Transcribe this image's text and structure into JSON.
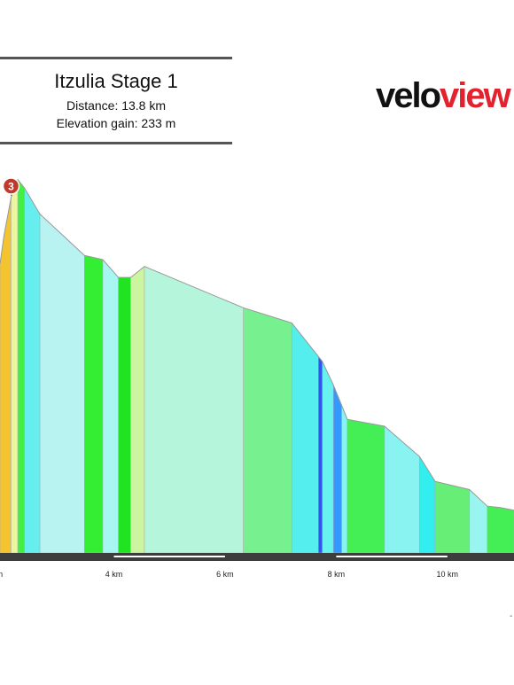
{
  "header": {
    "title": "Itzulia Stage 1",
    "distance": "Distance: 13.8 km",
    "elevation_gain": "Elevation gain: 233 m"
  },
  "logo": {
    "part1": "velo",
    "part2": "view",
    "color1": "#111111",
    "color2": "#e2222e"
  },
  "trailing_mark": "-",
  "chart_data": {
    "type": "area",
    "title": "Itzulia Stage 1",
    "xlabel": "",
    "ylabel": "",
    "x_unit": "km",
    "xlim": [
      1.95,
      11.2
    ],
    "ylim": [
      0,
      276
    ],
    "xticks": [
      {
        "value": 2,
        "label": "m"
      },
      {
        "value": 4,
        "label": "4 km"
      },
      {
        "value": 6,
        "label": "6 km"
      },
      {
        "value": 8,
        "label": "8 km"
      },
      {
        "value": 10,
        "label": "10 km"
      }
    ],
    "axis_bar_color": "#3d3d3d",
    "axis_stripe_segments": [
      [
        4,
        6
      ],
      [
        8,
        10
      ]
    ],
    "profile": [
      {
        "x": 1.95,
        "y": 210
      },
      {
        "x": 2.02,
        "y": 230
      },
      {
        "x": 2.15,
        "y": 258
      },
      {
        "x": 2.27,
        "y": 271
      },
      {
        "x": 2.39,
        "y": 265
      },
      {
        "x": 2.67,
        "y": 246
      },
      {
        "x": 3.47,
        "y": 216
      },
      {
        "x": 3.8,
        "y": 213
      },
      {
        "x": 4.08,
        "y": 200
      },
      {
        "x": 4.3,
        "y": 200
      },
      {
        "x": 4.55,
        "y": 208
      },
      {
        "x": 6.33,
        "y": 178
      },
      {
        "x": 7.2,
        "y": 167
      },
      {
        "x": 7.75,
        "y": 139
      },
      {
        "x": 7.95,
        "y": 122
      },
      {
        "x": 8.2,
        "y": 97
      },
      {
        "x": 8.87,
        "y": 92
      },
      {
        "x": 9.5,
        "y": 70
      },
      {
        "x": 9.78,
        "y": 52
      },
      {
        "x": 10.4,
        "y": 46
      },
      {
        "x": 10.72,
        "y": 34
      },
      {
        "x": 10.95,
        "y": 33
      },
      {
        "x": 11.2,
        "y": 31
      }
    ],
    "segments": [
      {
        "from": 1.95,
        "to": 2.15,
        "color": "#f4c430"
      },
      {
        "from": 2.15,
        "to": 2.27,
        "color": "#eef5a0"
      },
      {
        "from": 2.27,
        "to": 2.39,
        "color": "#44ee44"
      },
      {
        "from": 2.39,
        "to": 2.67,
        "color": "#66eeee"
      },
      {
        "from": 2.67,
        "to": 3.47,
        "color": "#b8f3f1"
      },
      {
        "from": 3.47,
        "to": 3.8,
        "color": "#33ee33"
      },
      {
        "from": 3.8,
        "to": 4.08,
        "color": "#a6f6f1"
      },
      {
        "from": 4.08,
        "to": 4.3,
        "color": "#22e322"
      },
      {
        "from": 4.3,
        "to": 4.55,
        "color": "#ccf5a0"
      },
      {
        "from": 4.55,
        "to": 6.33,
        "color": "#b5f5dc"
      },
      {
        "from": 6.33,
        "to": 7.2,
        "color": "#77f08f"
      },
      {
        "from": 7.2,
        "to": 7.68,
        "color": "#55eeee"
      },
      {
        "from": 7.68,
        "to": 7.75,
        "color": "#3355ee"
      },
      {
        "from": 7.75,
        "to": 7.95,
        "color": "#66f3f0"
      },
      {
        "from": 7.95,
        "to": 8.1,
        "color": "#3399ff"
      },
      {
        "from": 8.1,
        "to": 8.2,
        "color": "#88f3f0"
      },
      {
        "from": 8.2,
        "to": 8.87,
        "color": "#44ee55"
      },
      {
        "from": 8.87,
        "to": 9.5,
        "color": "#88f3f0"
      },
      {
        "from": 9.5,
        "to": 9.78,
        "color": "#33eeee"
      },
      {
        "from": 9.78,
        "to": 10.4,
        "color": "#66ee77"
      },
      {
        "from": 10.4,
        "to": 10.72,
        "color": "#99f5f0"
      },
      {
        "from": 10.72,
        "to": 11.2,
        "color": "#44ee55"
      }
    ],
    "annotations": [
      {
        "label": "3",
        "x": 2.15,
        "y": 258,
        "color": "#c0392b"
      }
    ]
  }
}
